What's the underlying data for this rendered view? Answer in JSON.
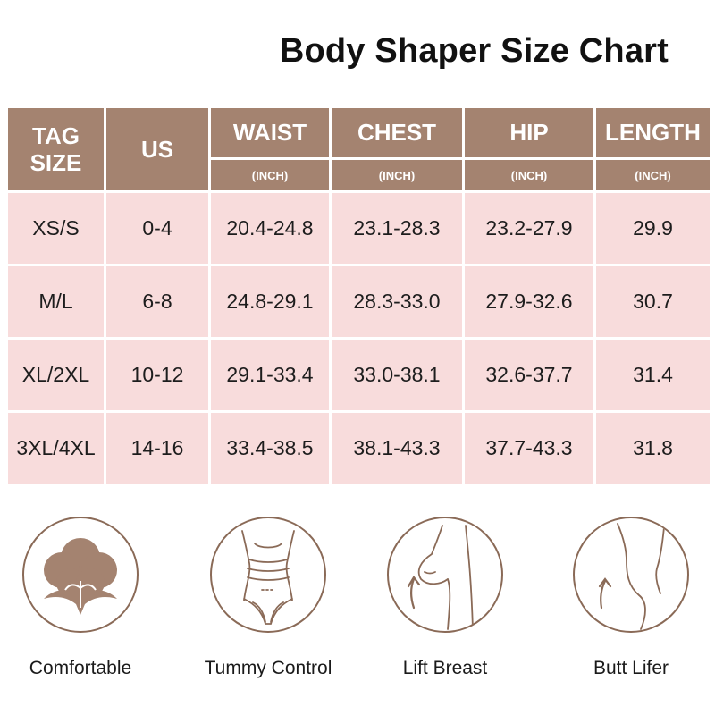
{
  "title": "Body Shaper Size Chart",
  "table": {
    "headers": {
      "tag_size_line1": "TAG",
      "tag_size_line2": "SIZE",
      "us": "US",
      "waist": "WAIST",
      "chest": "CHEST",
      "hip": "HIP",
      "length": "LENGTH",
      "unit": "(INCH)"
    },
    "rows": [
      {
        "tag": "XS/S",
        "us": "0-4",
        "waist": "20.4-24.8",
        "chest": "23.1-28.3",
        "hip": "23.2-27.9",
        "length": "29.9"
      },
      {
        "tag": "M/L",
        "us": "6-8",
        "waist": "24.8-29.1",
        "chest": "28.3-33.0",
        "hip": "27.9-32.6",
        "length": "30.7"
      },
      {
        "tag": "XL/2XL",
        "us": "10-12",
        "waist": "29.1-33.4",
        "chest": "33.0-38.1",
        "hip": "32.6-37.7",
        "length": "31.4"
      },
      {
        "tag": "3XL/4XL",
        "us": "14-16",
        "waist": "33.4-38.5",
        "chest": "38.1-43.3",
        "hip": "37.7-43.3",
        "length": "31.8"
      }
    ]
  },
  "features": [
    {
      "label": "Comfortable",
      "icon": "cotton-flower-icon"
    },
    {
      "label": "Tummy Control",
      "icon": "waist-torso-icon"
    },
    {
      "label": "Lift Breast",
      "icon": "breast-lift-icon"
    },
    {
      "label": "Butt Lifer",
      "icon": "butt-lift-icon"
    }
  ],
  "colors": {
    "header_bg": "#a48370",
    "row_bg": "#f8dcdc",
    "icon_stroke": "#8a6a57"
  }
}
